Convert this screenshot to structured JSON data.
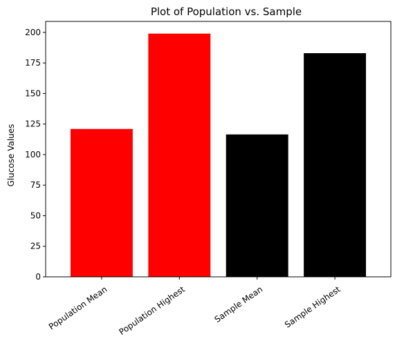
{
  "chart_data": {
    "type": "bar",
    "title": "Plot of Population vs. Sample",
    "xlabel": "",
    "ylabel": "Glucose Values",
    "categories": [
      "Population Mean",
      "Population Highest",
      "Sample Mean",
      "Sample Highest"
    ],
    "values": [
      121,
      199,
      116.5,
      183
    ],
    "bar_colors": [
      "#ff0000",
      "#ff0000",
      "#000000",
      "#000000"
    ],
    "ylim": [
      0,
      209
    ],
    "yticks": [
      0,
      25,
      50,
      75,
      100,
      125,
      150,
      175,
      200
    ],
    "grid": false,
    "legend": "none",
    "xtick_rotation": "rotated"
  }
}
